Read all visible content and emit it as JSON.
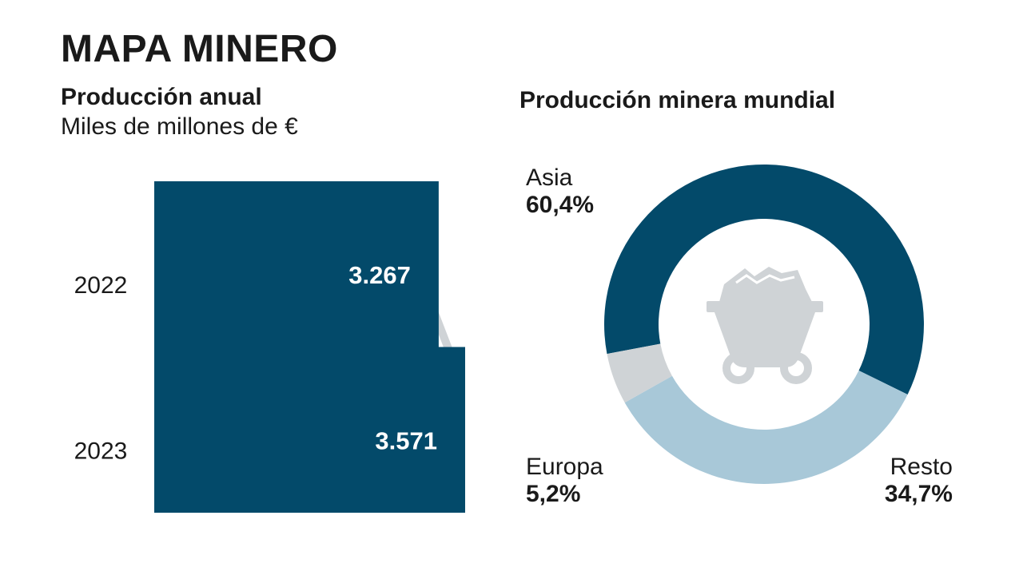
{
  "header": {
    "title": "MAPA MINERO"
  },
  "colors": {
    "dark": "#034a6a",
    "light": "#a8c8d8",
    "grey": "#cfd3d6"
  },
  "icons": {
    "headframe": "mine-headframe-icon",
    "cart": "mine-cart-icon"
  },
  "chart_data": [
    {
      "type": "bar",
      "orientation": "horizontal",
      "title": "Producción anual",
      "subtitle": "Miles de millones de €",
      "categories": [
        "2022",
        "2023"
      ],
      "values": [
        3267,
        3571
      ],
      "value_labels": [
        "3.267",
        "3.571"
      ],
      "xlim": [
        0,
        3571
      ]
    },
    {
      "type": "pie",
      "style": "donut",
      "title": "Producción minera mundial",
      "labels": [
        "Asia",
        "Resto",
        "Europa"
      ],
      "values": [
        60.4,
        34.7,
        5.2
      ],
      "value_labels": [
        "60,4%",
        "34,7%",
        "5,2%"
      ],
      "colors": [
        "#034a6a",
        "#a8c8d8",
        "#cfd3d6"
      ]
    }
  ]
}
